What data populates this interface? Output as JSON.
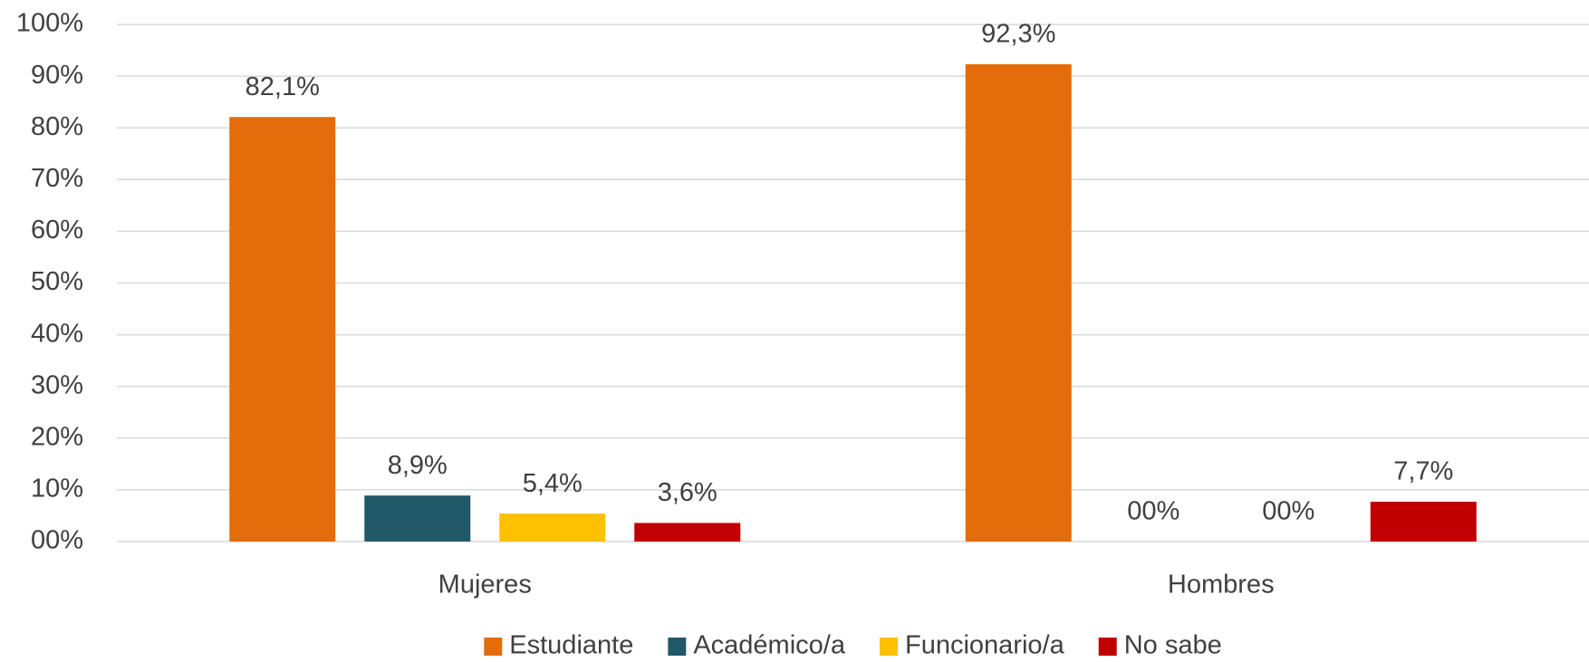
{
  "chart_data": {
    "type": "bar",
    "categories": [
      "Mujeres",
      "Hombres"
    ],
    "series": [
      {
        "name": "Estudiante",
        "color": "#E46C0A",
        "values": [
          82.1,
          92.3
        ],
        "value_labels": [
          "82,1%",
          "92,3%"
        ]
      },
      {
        "name": "Académico/a",
        "color": "#215968",
        "values": [
          8.9,
          0
        ],
        "value_labels": [
          "8,9%",
          "00%"
        ]
      },
      {
        "name": "Funcionario/a",
        "color": "#FFC000",
        "values": [
          5.4,
          0
        ],
        "value_labels": [
          "5,4%",
          "00%"
        ]
      },
      {
        "name": "No sabe",
        "color": "#C00000",
        "values": [
          3.6,
          7.7
        ],
        "value_labels": [
          "3,6%",
          "7,7%"
        ]
      }
    ],
    "ylim": [
      0,
      100
    ],
    "yticks": [
      {
        "value": 0,
        "label": "00%"
      },
      {
        "value": 10,
        "label": "10%"
      },
      {
        "value": 20,
        "label": "20%"
      },
      {
        "value": 30,
        "label": "30%"
      },
      {
        "value": 40,
        "label": "40%"
      },
      {
        "value": 50,
        "label": "50%"
      },
      {
        "value": 60,
        "label": "60%"
      },
      {
        "value": 70,
        "label": "70%"
      },
      {
        "value": 80,
        "label": "80%"
      },
      {
        "value": 90,
        "label": "90%"
      },
      {
        "value": 100,
        "label": "100%"
      }
    ],
    "grid": true,
    "legend": "bottom"
  }
}
